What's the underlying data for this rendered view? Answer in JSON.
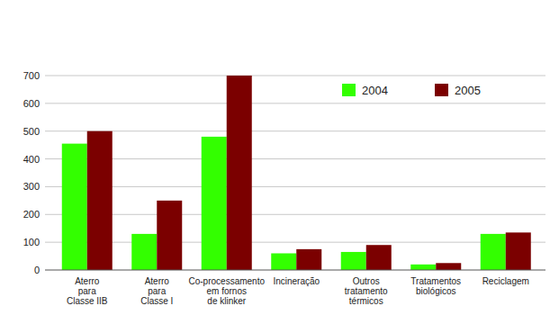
{
  "chart_data": {
    "type": "bar",
    "categories": [
      "Aterro\npara\nClasse IIB",
      "Aterro\npara\nClasse I",
      "Co-processamento\nem fornos\nde klinker",
      "Incineração",
      "Outros\ntratamento\ntérmicos",
      "Tratamentos\nbiológicos",
      "Reciclagem"
    ],
    "series": [
      {
        "name": "2004",
        "color": "#33ff00",
        "values": [
          455,
          130,
          480,
          60,
          65,
          20,
          130
        ]
      },
      {
        "name": "2005",
        "color": "#7b0000",
        "values": [
          500,
          250,
          700,
          75,
          90,
          25,
          135
        ]
      }
    ],
    "ylim": [
      0,
      700
    ],
    "yticks": [
      0,
      100,
      200,
      300,
      400,
      500,
      600,
      700
    ],
    "grid": true,
    "legend": "top-right"
  }
}
